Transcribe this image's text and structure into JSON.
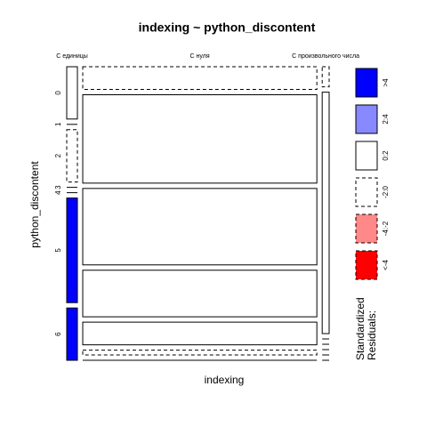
{
  "chart_data": {
    "type": "mosaic",
    "title": "indexing ~ python_discontent",
    "x_label": "indexing",
    "y_label": "python_discontent",
    "x_categories": [
      "С единицы",
      "С нуля",
      "С произвольного числа"
    ],
    "y_categories": [
      "0",
      "1",
      "2",
      "3",
      "4",
      "5",
      "6"
    ],
    "counts": [
      [
        4,
        0,
        4,
        0,
        0,
        8,
        4
      ],
      [
        38,
        148,
        128,
        78,
        38,
        8,
        0
      ],
      [
        1,
        12,
        0,
        0,
        0,
        0,
        0
      ]
    ],
    "residuals": [
      [
        1,
        -0.5,
        -1,
        -0.5,
        -0.5,
        4.5,
        4.5
      ],
      [
        -1,
        1,
        1,
        1,
        1,
        -1,
        -0.5
      ],
      [
        -1,
        1,
        -0.5,
        -0.5,
        -0.5,
        -0.5,
        -0.5
      ]
    ],
    "legend_title": [
      "Standardized",
      "Residuals:"
    ],
    "legend": [
      {
        "label": ">4",
        "color": "#0000ff",
        "min": 4
      },
      {
        "label": "2:4",
        "color": "#8888ff",
        "min": 2
      },
      {
        "label": "0:2",
        "color": "#ffffff",
        "min": 0
      },
      {
        "label": "-2:0",
        "color": "#ffffff",
        "min": -2
      },
      {
        "label": "-4:-2",
        "color": "#ff8888",
        "min": -4
      },
      {
        "label": "<-4",
        "color": "#ff0000",
        "min": null
      }
    ]
  }
}
